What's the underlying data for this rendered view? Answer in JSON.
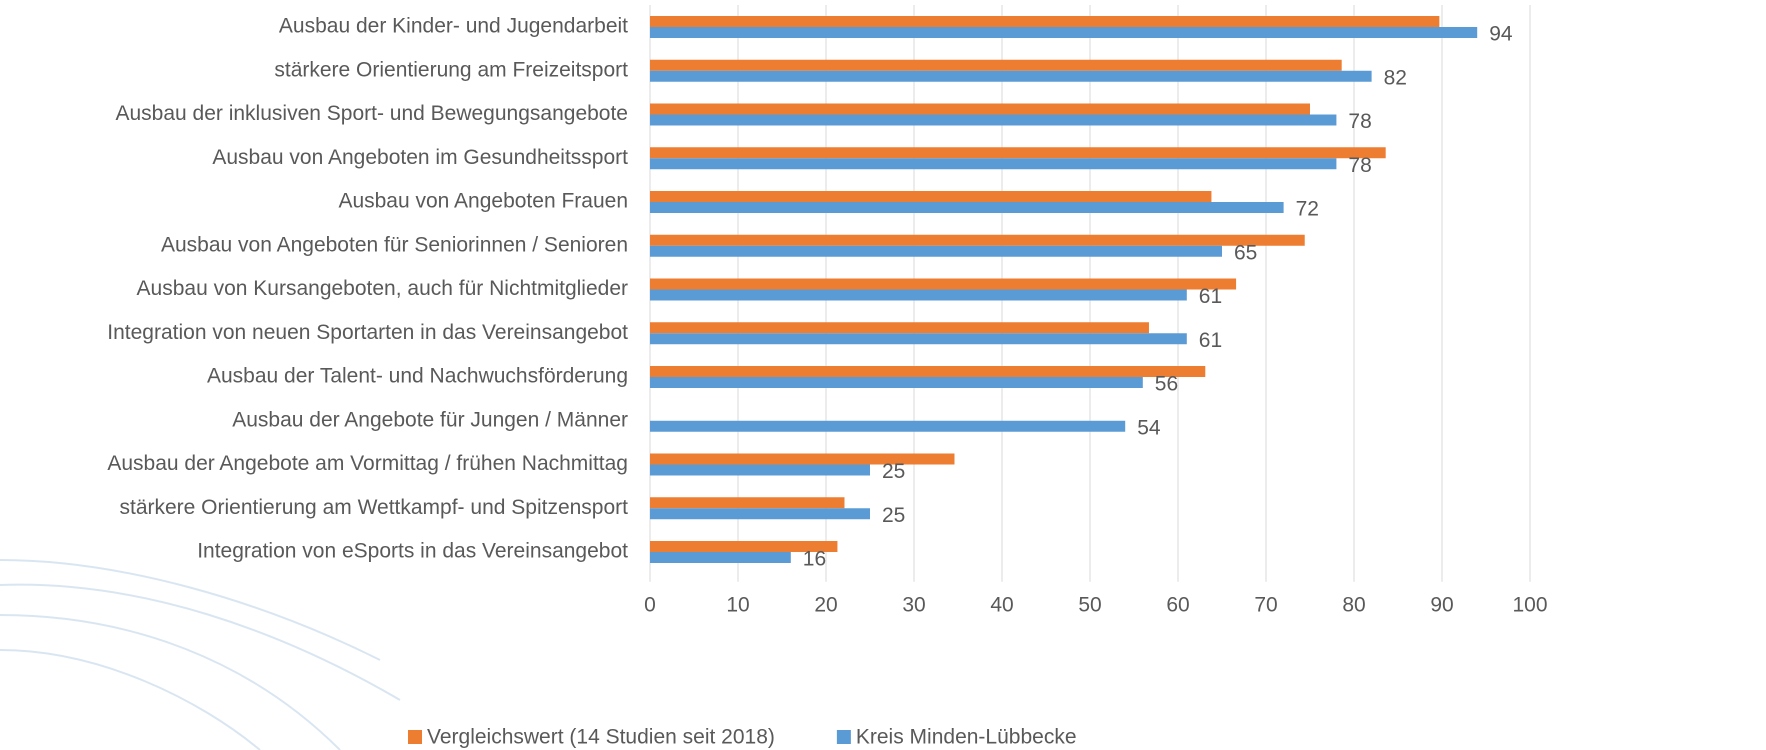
{
  "chart_data": {
    "type": "bar",
    "orientation": "horizontal",
    "categories": [
      "Ausbau der Kinder- und Jugendarbeit",
      "stärkere Orientierung am Freizeitsport",
      "Ausbau der inklusiven Sport- und Bewegungsangebote",
      "Ausbau von Angeboten im Gesundheitssport",
      "Ausbau von Angeboten Frauen",
      "Ausbau von Angeboten für Seniorinnen / Senioren",
      "Ausbau von Kursangeboten, auch für Nichtmitglieder",
      "Integration von neuen Sportarten in das Vereinsangebot",
      "Ausbau der Talent- und Nachwuchsförderung",
      "Ausbau der Angebote für Jungen / Männer",
      "Ausbau der Angebote am Vormittag / frühen Nachmittag",
      "stärkere Orientierung am Wettkampf- und Spitzensport",
      "Integration von eSports in das Vereinsangebot"
    ],
    "series": [
      {
        "name": "Vergleichswert (14 Studien seit 2018)",
        "color": "#ed7d31",
        "values": [
          89.7,
          78.6,
          75,
          83.6,
          63.8,
          74.4,
          66.6,
          56.7,
          63.1,
          null,
          34.6,
          22.1,
          21.3
        ]
      },
      {
        "name": "Kreis Minden-Lübbecke",
        "color": "#5b9bd5",
        "values": [
          94,
          82,
          78,
          78,
          72,
          65,
          61,
          61,
          56,
          54,
          25,
          25,
          16
        ],
        "data_labels": true
      }
    ],
    "xlim": [
      0,
      100
    ],
    "xticks": [
      0,
      10,
      20,
      30,
      40,
      50,
      60,
      70,
      80,
      90,
      100
    ],
    "grid": true,
    "legend": "bottom"
  }
}
